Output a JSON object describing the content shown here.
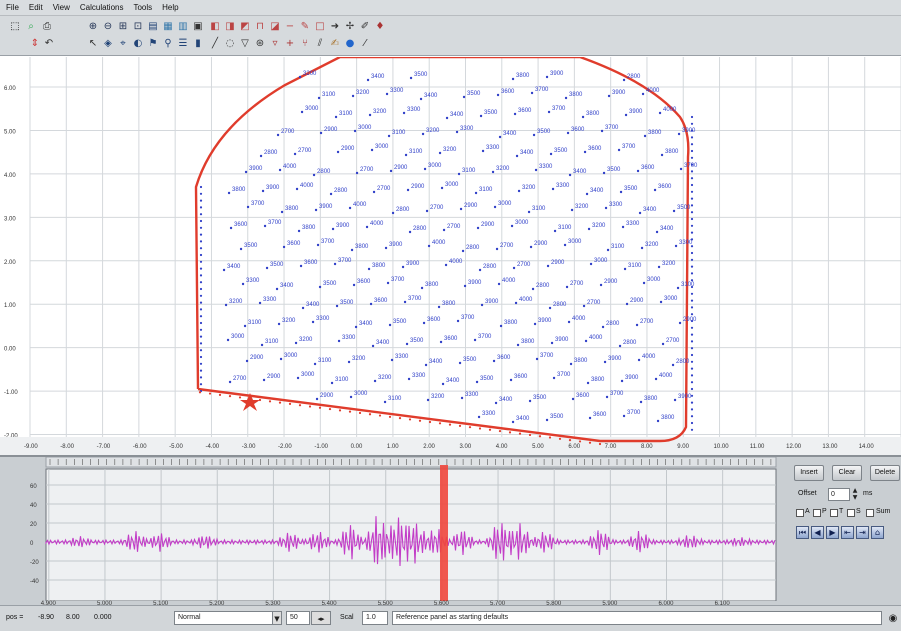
{
  "menu": [
    "File",
    "Edit",
    "View",
    "Calculations",
    "Tools",
    "Help"
  ],
  "toolbar_icons": [
    "select-icon",
    "zoom-icon",
    "print-icon",
    "pan-icon",
    "undo-icon",
    "zoom-in-icon",
    "zoom-out-icon",
    "zoom-fit-icon",
    "zoom-window-icon",
    "layers-icon",
    "grid-icon",
    "table-icon",
    "chart-icon",
    "color-icon",
    "measure-icon",
    "flag-icon",
    "pin-icon",
    "line-icon",
    "polygon-icon",
    "arrow-icon",
    "pencil-icon",
    "marker-icon"
  ],
  "plot": {
    "y_ticks": [
      "6.00",
      "5.00",
      "4.00",
      "3.00",
      "2.00",
      "1.00",
      "0.00",
      "-1.00",
      "-2.00"
    ],
    "x_ticks": [
      "-9.00",
      "-8.00",
      "-7.00",
      "-6.00",
      "-5.00",
      "-4.00",
      "-3.00",
      "-2.00",
      "-1.00",
      "0.00",
      "1.00",
      "2.00",
      "3.00",
      "4.00",
      "5.00",
      "6.00",
      "7.00",
      "8.00",
      "9.00",
      "10.00",
      "11.00",
      "12.00",
      "13.00",
      "14.00"
    ],
    "point_labels": [
      "2900",
      "3000",
      "3100",
      "3200",
      "3300",
      "3400",
      "3500",
      "3600",
      "3700",
      "3800",
      "3900",
      "4000",
      "2800",
      "2700"
    ],
    "colors": {
      "outline": "#e03c2c",
      "labels": "#2f3fc8",
      "grid": "#d4d8dc",
      "marker": "#e03c2c"
    }
  },
  "trace": {
    "y_ticks": [
      "60",
      "40",
      "20",
      "0",
      "-20",
      "-40"
    ],
    "x_ticks": [
      "4.900",
      "5.000",
      "5.100",
      "5.200",
      "5.300",
      "5.400",
      "5.500",
      "5.600",
      "5.700",
      "5.800",
      "5.900",
      "6.000",
      "6.100"
    ],
    "colors": {
      "waveform": "#c23dc7",
      "cursor": "#f0463c"
    }
  },
  "controls": {
    "insert_label": "Insert",
    "clear_label": "Clear",
    "delete_label": "Delete",
    "offset_label": "Offset",
    "offset_value": "0",
    "offset_unit": "ms",
    "check_labels": [
      "A",
      "P",
      "T",
      "S",
      "Sum"
    ]
  },
  "status": {
    "coord_label": "pos =",
    "x_value": "-8.90",
    "y_value": "8.00",
    "z_value": "0.000",
    "mode_value": "Normal",
    "step_value": "50",
    "scale_label": "Scal",
    "scale_value": "1.0",
    "message": "Reference panel as starting defaults"
  }
}
